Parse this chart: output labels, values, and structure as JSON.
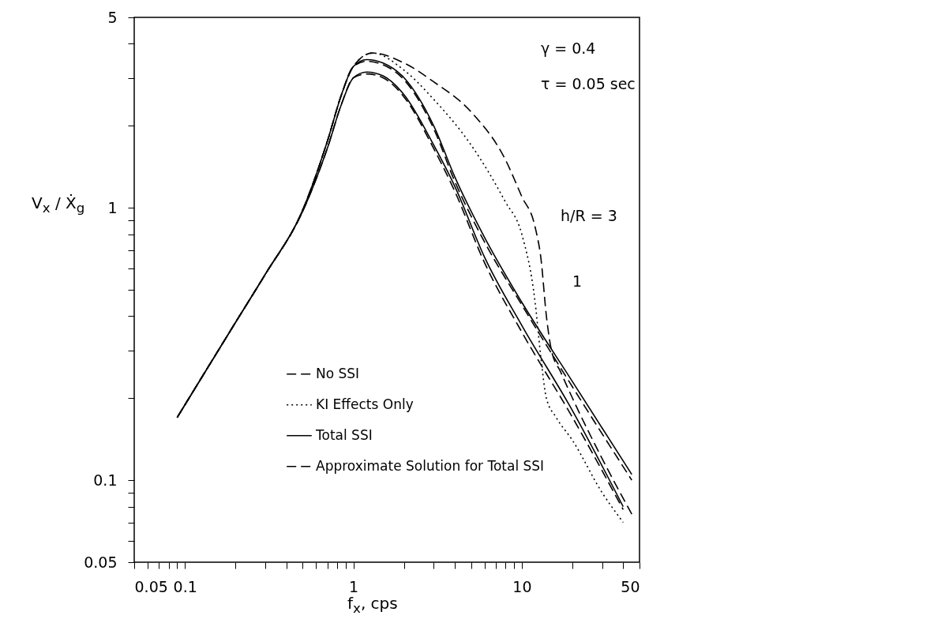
{
  "chart_data": {
    "type": "line",
    "xlabel": "f$_{x}$, cps",
    "ylabel": "V$_{x}$ / Ẋ$_{g}$",
    "log": "xy",
    "grid": false,
    "legend": "bottom",
    "marker": "none",
    "xlim": [
      0.05,
      50
    ],
    "ylim": [
      0.05,
      5
    ],
    "xticks": [
      0.05,
      {
        "value": 0.06,
        "label": null
      },
      {
        "value": 0.07,
        "label": null
      },
      {
        "value": 0.08,
        "label": null
      },
      {
        "value": 0.09,
        "label": null
      },
      0.1,
      {
        "value": 0.2,
        "label": null
      },
      {
        "value": 0.3,
        "label": null
      },
      {
        "value": 0.4,
        "label": null
      },
      {
        "value": 0.5,
        "label": null
      },
      {
        "value": 0.6,
        "label": null
      },
      {
        "value": 0.7,
        "label": null
      },
      {
        "value": 0.8,
        "label": null
      },
      {
        "value": 0.9,
        "label": null
      },
      1,
      {
        "value": 2,
        "label": null
      },
      {
        "value": 3,
        "label": null
      },
      {
        "value": 4,
        "label": null
      },
      {
        "value": 5,
        "label": null
      },
      {
        "value": 6,
        "label": null
      },
      {
        "value": 7,
        "label": null
      },
      {
        "value": 8,
        "label": null
      },
      {
        "value": 9,
        "label": null
      },
      10,
      {
        "value": 20,
        "label": null
      },
      {
        "value": 30,
        "label": null
      },
      {
        "value": 40,
        "label": null
      },
      50
    ],
    "yticks": [
      0.05,
      {
        "value": 0.06,
        "label": null
      },
      {
        "value": 0.07,
        "label": null
      },
      {
        "value": 0.08,
        "label": null
      },
      {
        "value": 0.09,
        "label": null
      },
      0.1,
      {
        "value": 0.2,
        "label": null
      },
      {
        "value": 0.3,
        "label": null
      },
      {
        "value": 0.4,
        "label": null
      },
      {
        "value": 0.5,
        "label": null
      },
      {
        "value": 0.6,
        "label": null
      },
      {
        "value": 0.7,
        "label": null
      },
      {
        "value": 0.8,
        "label": null
      },
      {
        "value": 0.9,
        "label": null
      },
      1,
      {
        "value": 2,
        "label": null
      },
      {
        "value": 3,
        "label": null
      },
      {
        "value": 4,
        "label": null
      },
      5
    ],
    "series": [
      {
        "name": "No SSI",
        "color": "#000000",
        "line_style": "dashed",
        "x": [
          0.09,
          0.2,
          0.3,
          0.5,
          0.7,
          0.85,
          1,
          1.3,
          2,
          3,
          5,
          8,
          10,
          12,
          13,
          14,
          15,
          17,
          20,
          30,
          45
        ],
        "values": [
          0.17,
          0.38,
          0.57,
          0.98,
          1.75,
          2.6,
          3.3,
          3.7,
          3.4,
          2.9,
          2.25,
          1.5,
          1.1,
          0.85,
          0.65,
          0.4,
          0.3,
          0.25,
          0.2,
          0.12,
          0.075
        ]
      },
      {
        "name": "KI Effects Only",
        "color": "#000000",
        "line_style": "dotted",
        "x": [
          0.09,
          0.2,
          0.3,
          0.5,
          0.7,
          0.85,
          1,
          1.3,
          2,
          3,
          5,
          8,
          10,
          12,
          13,
          14,
          16,
          20,
          30,
          40
        ],
        "values": [
          0.17,
          0.38,
          0.57,
          0.98,
          1.75,
          2.6,
          3.3,
          3.7,
          3.2,
          2.5,
          1.7,
          1.05,
          0.8,
          0.45,
          0.28,
          0.2,
          0.17,
          0.14,
          0.09,
          0.07
        ]
      },
      {
        "name": "Total SSI",
        "color": "#000000",
        "line_style": "solid",
        "x": [
          0.09,
          0.2,
          0.3,
          0.5,
          0.7,
          0.85,
          1,
          1.2,
          1.5,
          2,
          3,
          4,
          6,
          10,
          20,
          45
        ],
        "values": [
          0.17,
          0.38,
          0.57,
          0.98,
          1.75,
          2.6,
          3.3,
          3.5,
          3.4,
          3.0,
          2.0,
          1.3,
          0.78,
          0.45,
          0.23,
          0.105
        ]
      },
      {
        "color": "#000000",
        "line_style": "solid",
        "x": [
          0.09,
          0.2,
          0.3,
          0.5,
          0.7,
          0.85,
          1,
          1.2,
          1.5,
          2,
          3,
          4,
          6,
          10,
          20,
          40
        ],
        "values": [
          0.17,
          0.38,
          0.57,
          0.97,
          1.65,
          2.4,
          3.0,
          3.15,
          3.05,
          2.6,
          1.7,
          1.2,
          0.66,
          0.37,
          0.18,
          0.08
        ]
      },
      {
        "name": "Approximate Solution for Total SSI",
        "color": "#000000",
        "line_style": "dashed",
        "x": [
          0.09,
          0.2,
          0.3,
          0.5,
          0.7,
          0.85,
          1,
          1.2,
          1.5,
          2,
          3,
          4,
          6,
          10,
          20,
          45
        ],
        "values": [
          0.17,
          0.38,
          0.57,
          0.98,
          1.75,
          2.6,
          3.3,
          3.45,
          3.35,
          2.95,
          1.95,
          1.25,
          0.75,
          0.44,
          0.22,
          0.1
        ]
      },
      {
        "color": "#000000",
        "line_style": "dashed",
        "x": [
          0.09,
          0.2,
          0.3,
          0.5,
          0.7,
          0.85,
          1,
          1.2,
          1.5,
          2,
          3,
          4,
          6,
          10,
          20,
          40
        ],
        "values": [
          0.17,
          0.38,
          0.57,
          0.97,
          1.65,
          2.4,
          3.0,
          3.1,
          3.0,
          2.55,
          1.65,
          1.15,
          0.63,
          0.35,
          0.17,
          0.078
        ]
      }
    ],
    "annotations": [
      "γ = 0.4",
      "τ = 0.05 sec",
      "h/R = 3",
      "1"
    ]
  }
}
